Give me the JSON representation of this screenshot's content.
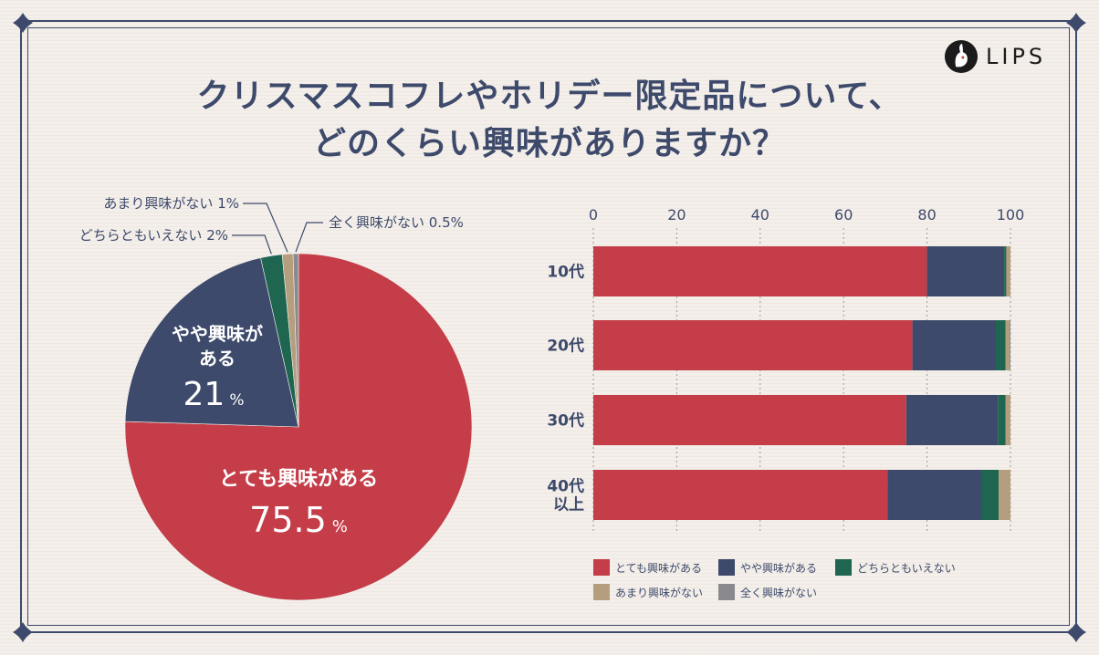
{
  "title_line1": "クリスマスコフレやホリデー限定品について、",
  "title_line2": "どのくらい興味がありますか？",
  "logo": {
    "text": "LIPS",
    "icon": "rabbit-logo-icon"
  },
  "colors": {
    "とても興味がある": "#c43d48",
    "やや興味がある": "#3d4a6b",
    "どちらともいえない": "#1e6650",
    "あまり興味がない": "#b59e7e",
    "全く興味がない": "#8a8a8e"
  },
  "chart_data": [
    {
      "type": "pie",
      "slices": [
        {
          "label": "とても興味がある",
          "value": 75.5,
          "display_name": "とても興味がある",
          "display_value": "75.5",
          "unit": "%"
        },
        {
          "label": "やや興味がある",
          "value": 21,
          "display_name": "やや興味が|ある",
          "display_value": "21",
          "unit": "%"
        },
        {
          "label": "どちらともいえない",
          "value": 2,
          "callout": "どちらともいえない 2%"
        },
        {
          "label": "あまり興味がない",
          "value": 1,
          "callout": "あまり興味がない 1%"
        },
        {
          "label": "全く興味がない",
          "value": 0.5,
          "callout": "全く興味がない 0.5%"
        }
      ]
    },
    {
      "type": "bar",
      "orientation": "horizontal",
      "stacked": true,
      "categories": [
        "10代",
        "20代",
        "30代",
        "40代|以上"
      ],
      "xlim": [
        0,
        100
      ],
      "xticks": [
        0,
        20,
        40,
        60,
        80,
        100
      ],
      "grid": true,
      "legend_position": "bottom",
      "series": [
        {
          "name": "とても興味がある",
          "values": [
            80,
            76.5,
            75,
            70.5
          ]
        },
        {
          "name": "やや興味がある",
          "values": [
            18.5,
            20,
            22,
            22.5
          ]
        },
        {
          "name": "どちらともいえない",
          "values": [
            0.5,
            2.3,
            1.8,
            4.2
          ]
        },
        {
          "name": "あまり興味がない",
          "values": [
            1,
            1,
            1.2,
            2.8
          ]
        },
        {
          "name": "全く興味がない",
          "values": [
            0,
            0.2,
            0,
            0
          ]
        }
      ]
    }
  ]
}
